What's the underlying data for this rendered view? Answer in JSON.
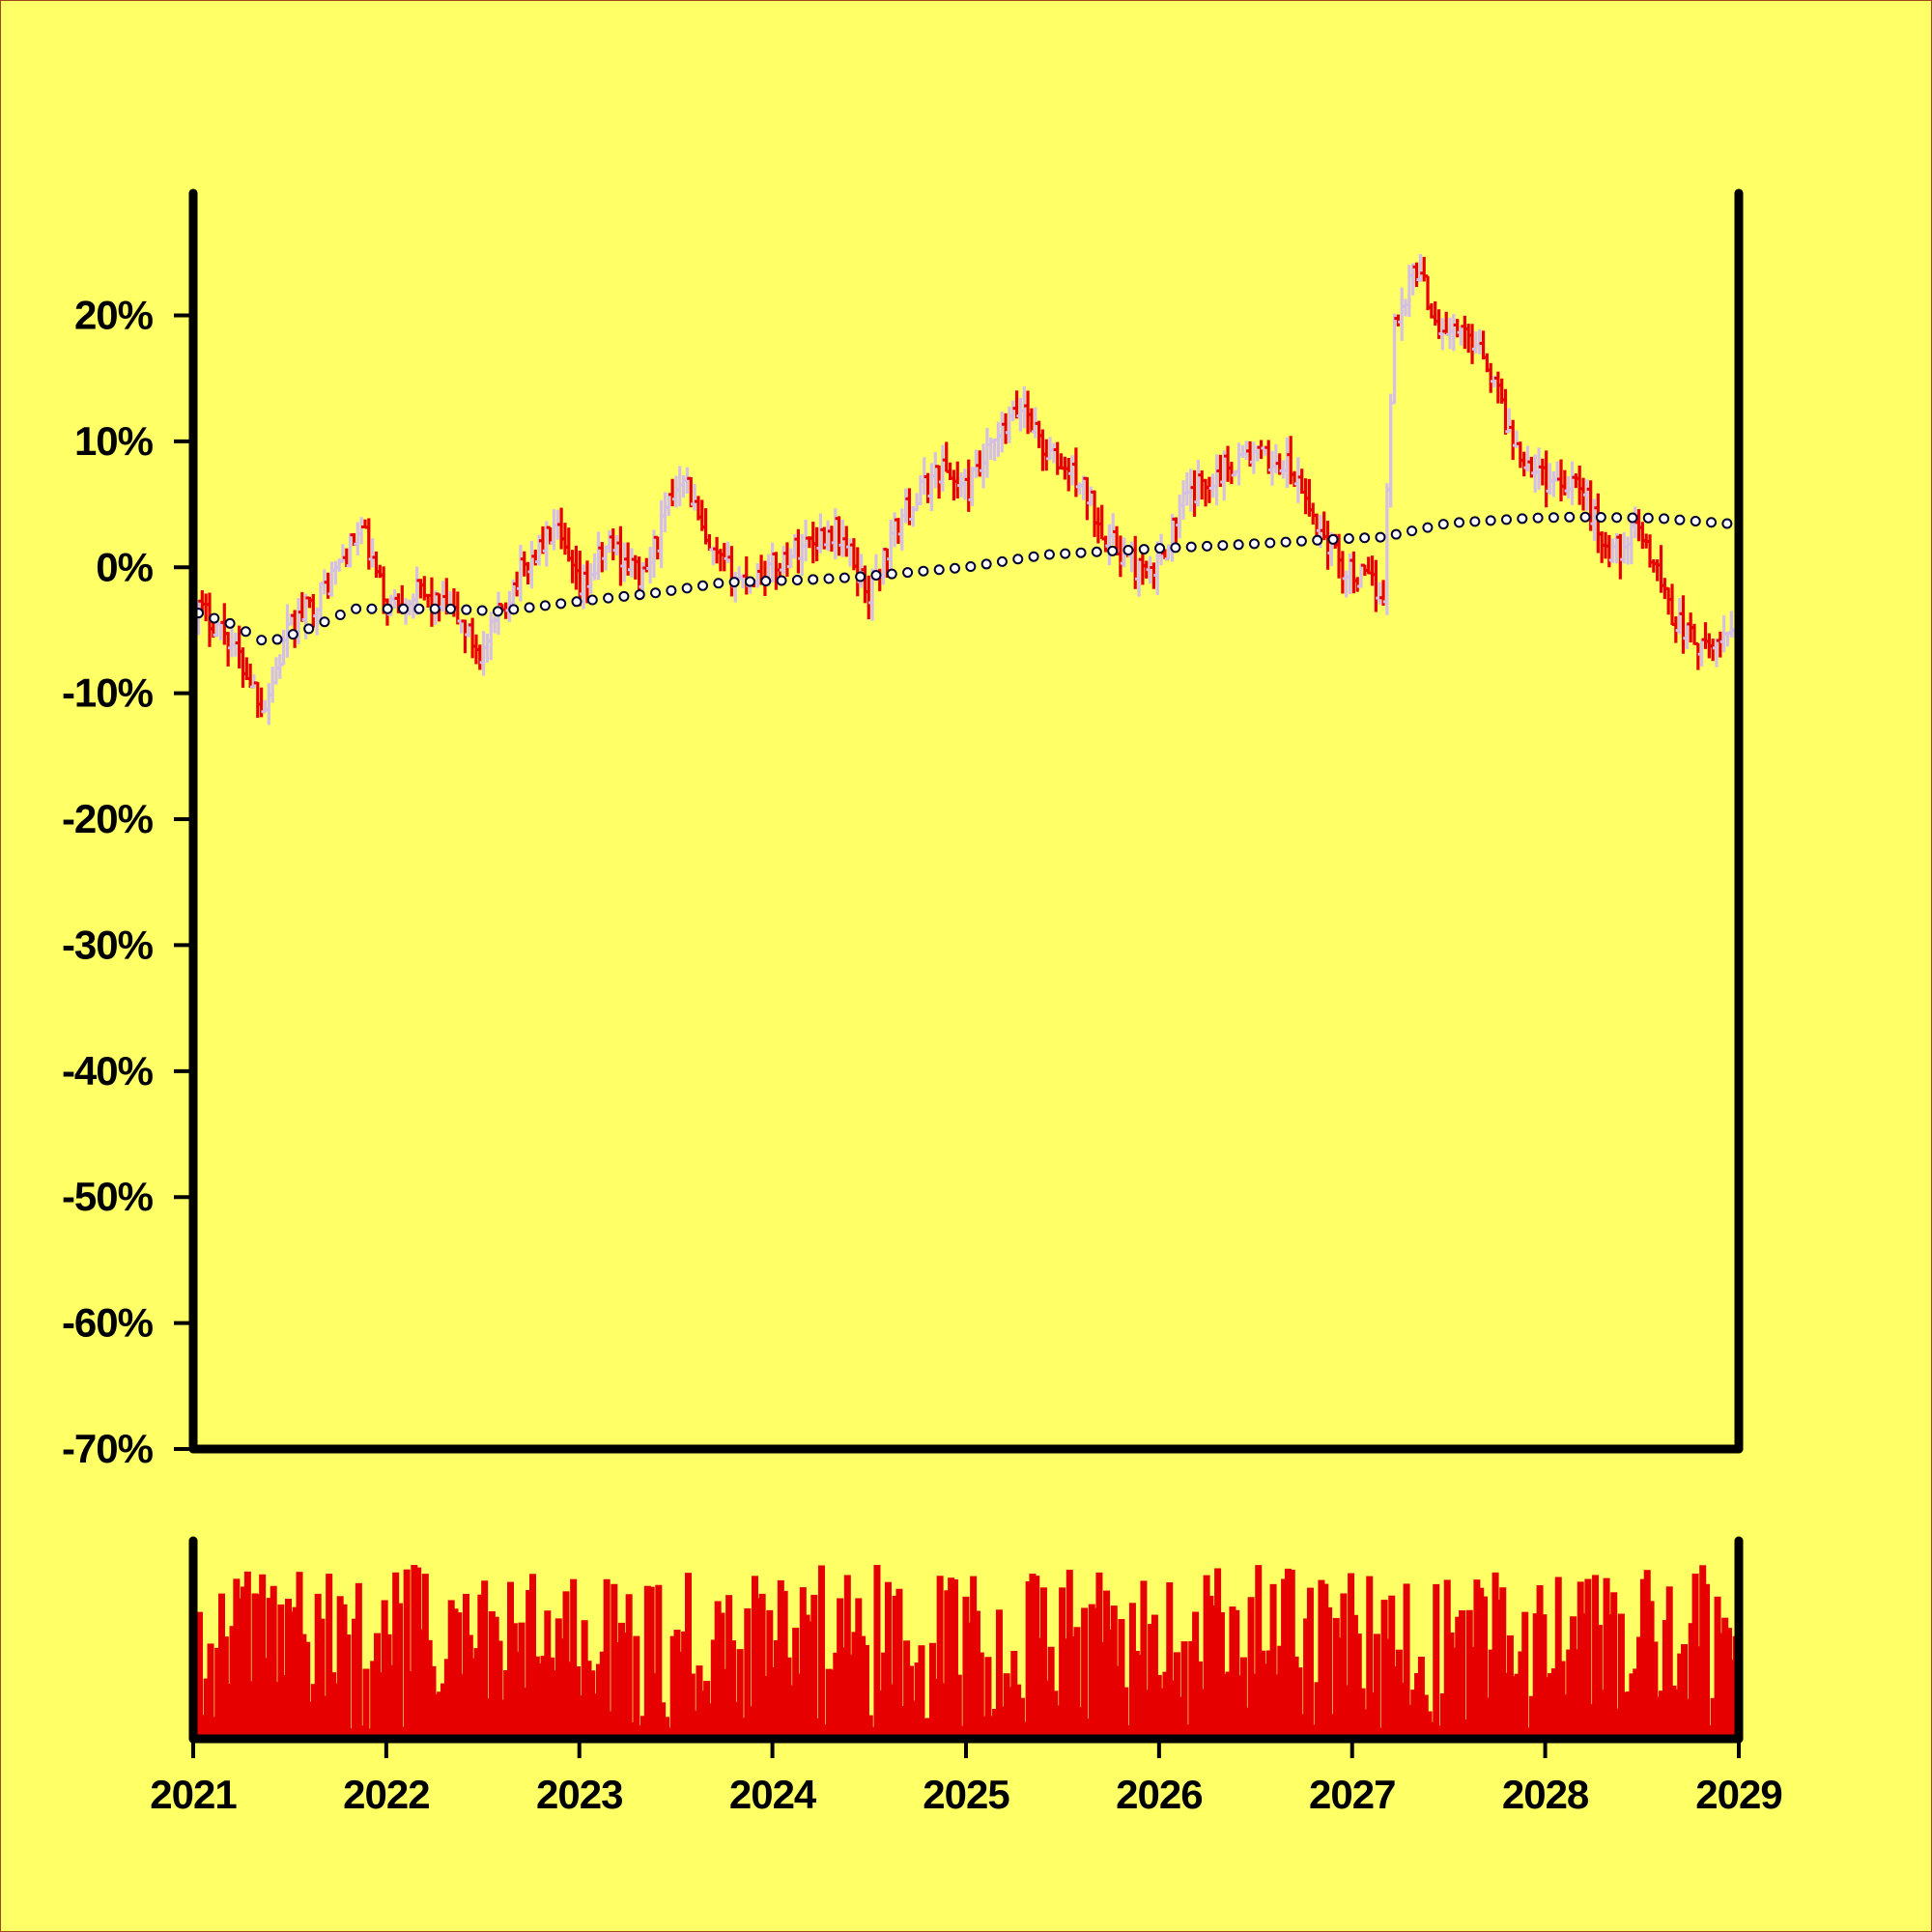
{
  "chart_data": [
    {
      "type": "ohlc",
      "panel": "price",
      "x_axis": {
        "type": "time",
        "ticks": [
          "2021",
          "2022",
          "2023",
          "2024",
          "2025",
          "2026",
          "2027",
          "2028",
          "2029"
        ],
        "range": [
          "2021-01-01",
          "2029-01-01"
        ]
      },
      "y_axis": {
        "unit": "%",
        "ticks": [
          "20%",
          "10%",
          "0%",
          "-10%",
          "-20%",
          "-30%",
          "-40%",
          "-50%",
          "-60%",
          "-70%"
        ],
        "range": [
          -70,
          29
        ]
      },
      "colors": {
        "up": "#d4bfe6",
        "down": "#e60000",
        "moving_average": "#000033",
        "background": "#ffff66",
        "axis": "#000000"
      },
      "anchors_pct": [
        [
          "2021-01-01",
          -3
        ],
        [
          "2021-03-01",
          -5
        ],
        [
          "2021-05-15",
          -11
        ],
        [
          "2021-07-01",
          -5
        ],
        [
          "2021-09-01",
          -2
        ],
        [
          "2021-11-15",
          3
        ],
        [
          "2022-01-01",
          -3
        ],
        [
          "2022-03-01",
          -2
        ],
        [
          "2022-05-15",
          -4
        ],
        [
          "2022-07-01",
          -7
        ],
        [
          "2022-09-01",
          -1
        ],
        [
          "2022-11-15",
          3
        ],
        [
          "2023-01-01",
          -2
        ],
        [
          "2023-03-01",
          2
        ],
        [
          "2023-05-01",
          -1
        ],
        [
          "2023-07-15",
          8
        ],
        [
          "2023-09-01",
          1
        ],
        [
          "2023-11-01",
          -1
        ],
        [
          "2024-01-01",
          0
        ],
        [
          "2024-03-01",
          2
        ],
        [
          "2024-05-01",
          3
        ],
        [
          "2024-07-01",
          -2
        ],
        [
          "2024-09-01",
          4
        ],
        [
          "2024-11-15",
          8
        ],
        [
          "2025-01-01",
          6
        ],
        [
          "2025-03-01",
          10
        ],
        [
          "2025-04-20",
          13
        ],
        [
          "2025-06-01",
          9
        ],
        [
          "2025-08-01",
          7
        ],
        [
          "2025-10-01",
          2
        ],
        [
          "2025-12-15",
          -1
        ],
        [
          "2026-02-15",
          5
        ],
        [
          "2026-04-01",
          7
        ],
        [
          "2026-06-15",
          9
        ],
        [
          "2026-09-01",
          8
        ],
        [
          "2026-11-01",
          3
        ],
        [
          "2026-12-15",
          0
        ],
        [
          "2027-03-01",
          -2
        ],
        [
          "2027-03-20",
          19
        ],
        [
          "2027-05-01",
          24
        ],
        [
          "2027-06-15",
          19
        ],
        [
          "2027-09-01",
          18
        ],
        [
          "2027-11-01",
          10
        ],
        [
          "2028-01-01",
          7
        ],
        [
          "2028-03-01",
          7
        ],
        [
          "2028-05-01",
          1
        ],
        [
          "2028-07-01",
          3
        ],
        [
          "2028-09-01",
          -4
        ],
        [
          "2028-11-01",
          -7
        ],
        [
          "2028-12-31",
          -4
        ]
      ],
      "moving_average_pct": [
        [
          "2021-01-01",
          -3.5
        ],
        [
          "2021-03-15",
          -4.5
        ],
        [
          "2021-05-20",
          -6
        ],
        [
          "2021-08-01",
          -5
        ],
        [
          "2021-11-01",
          -3.3
        ],
        [
          "2022-02-01",
          -3.3
        ],
        [
          "2022-05-01",
          -3.3
        ],
        [
          "2022-08-01",
          -3.5
        ],
        [
          "2023-01-01",
          -2.7
        ],
        [
          "2023-06-01",
          -2
        ],
        [
          "2023-10-01",
          -1.2
        ],
        [
          "2024-03-01",
          -1
        ],
        [
          "2024-06-01",
          -0.8
        ],
        [
          "2025-01-01",
          0
        ],
        [
          "2025-06-01",
          1
        ],
        [
          "2026-01-01",
          1.5
        ],
        [
          "2026-06-01",
          1.8
        ],
        [
          "2027-01-01",
          2.3
        ],
        [
          "2027-03-01",
          2.4
        ],
        [
          "2027-07-01",
          3.5
        ],
        [
          "2027-12-01",
          3.9
        ],
        [
          "2028-03-01",
          4.0
        ],
        [
          "2028-08-01",
          3.9
        ],
        [
          "2028-12-31",
          3.4
        ]
      ]
    },
    {
      "type": "bar",
      "panel": "volume",
      "color": "#e60000",
      "x_axis": {
        "range": [
          "2021-01-01",
          "2029-01-01"
        ]
      }
    }
  ]
}
